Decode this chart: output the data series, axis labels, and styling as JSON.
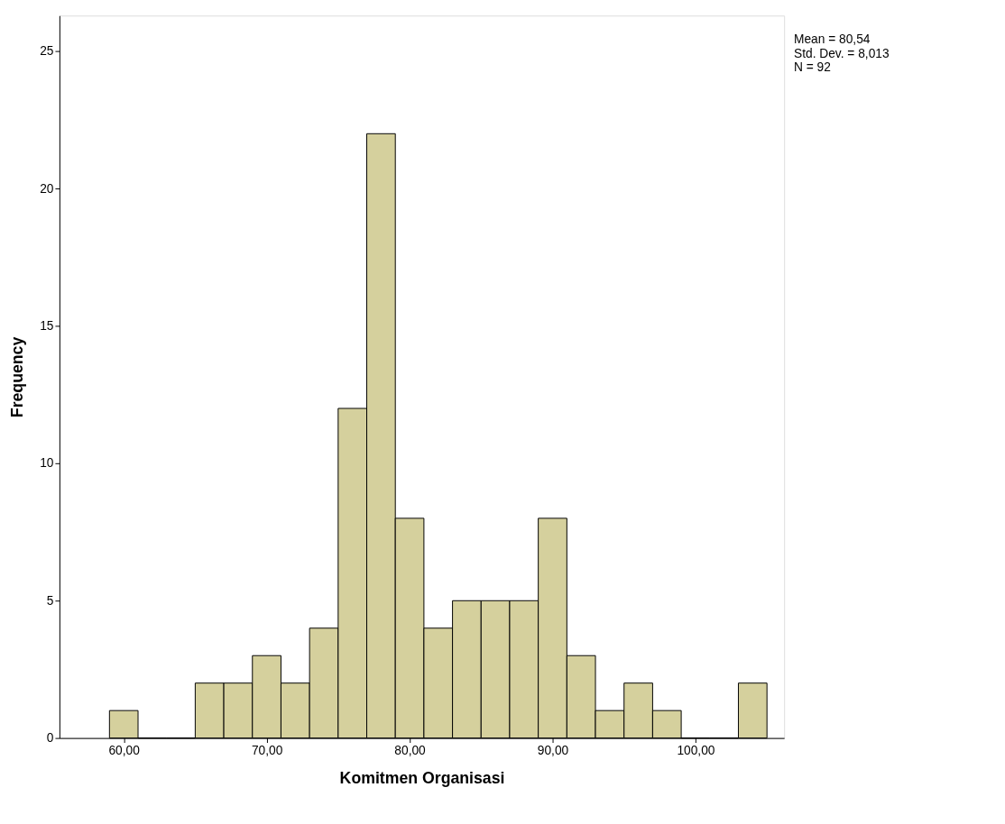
{
  "chart_data": {
    "type": "histogram",
    "xlabel": "Komitmen Organisasi",
    "ylabel": "Frequency",
    "bins": [
      59,
      61,
      63,
      65,
      67,
      69,
      71,
      73,
      75,
      77,
      79,
      81,
      83,
      85,
      87,
      89,
      91,
      93,
      95,
      97,
      99,
      101,
      103,
      105
    ],
    "values": [
      1,
      0,
      0,
      2,
      2,
      3,
      2,
      4,
      12,
      22,
      8,
      4,
      5,
      5,
      5,
      8,
      3,
      1,
      2,
      1,
      0,
      0,
      2
    ],
    "color": "#d5d09d",
    "xlim": [
      55.5,
      106.2
    ],
    "xticks": [
      {
        "value": 60,
        "label": "60,00"
      },
      {
        "value": 70,
        "label": "70,00"
      },
      {
        "value": 80,
        "label": "80,00"
      },
      {
        "value": 90,
        "label": "90,00"
      },
      {
        "value": 100,
        "label": "100,00"
      }
    ],
    "ylim": [
      0,
      26.3
    ],
    "yticks": [
      0,
      5,
      10,
      15,
      20,
      25
    ],
    "grid": false,
    "annotations": [
      "Mean = 80,54",
      "Std. Dev. = 8,013",
      "N = 92"
    ]
  }
}
